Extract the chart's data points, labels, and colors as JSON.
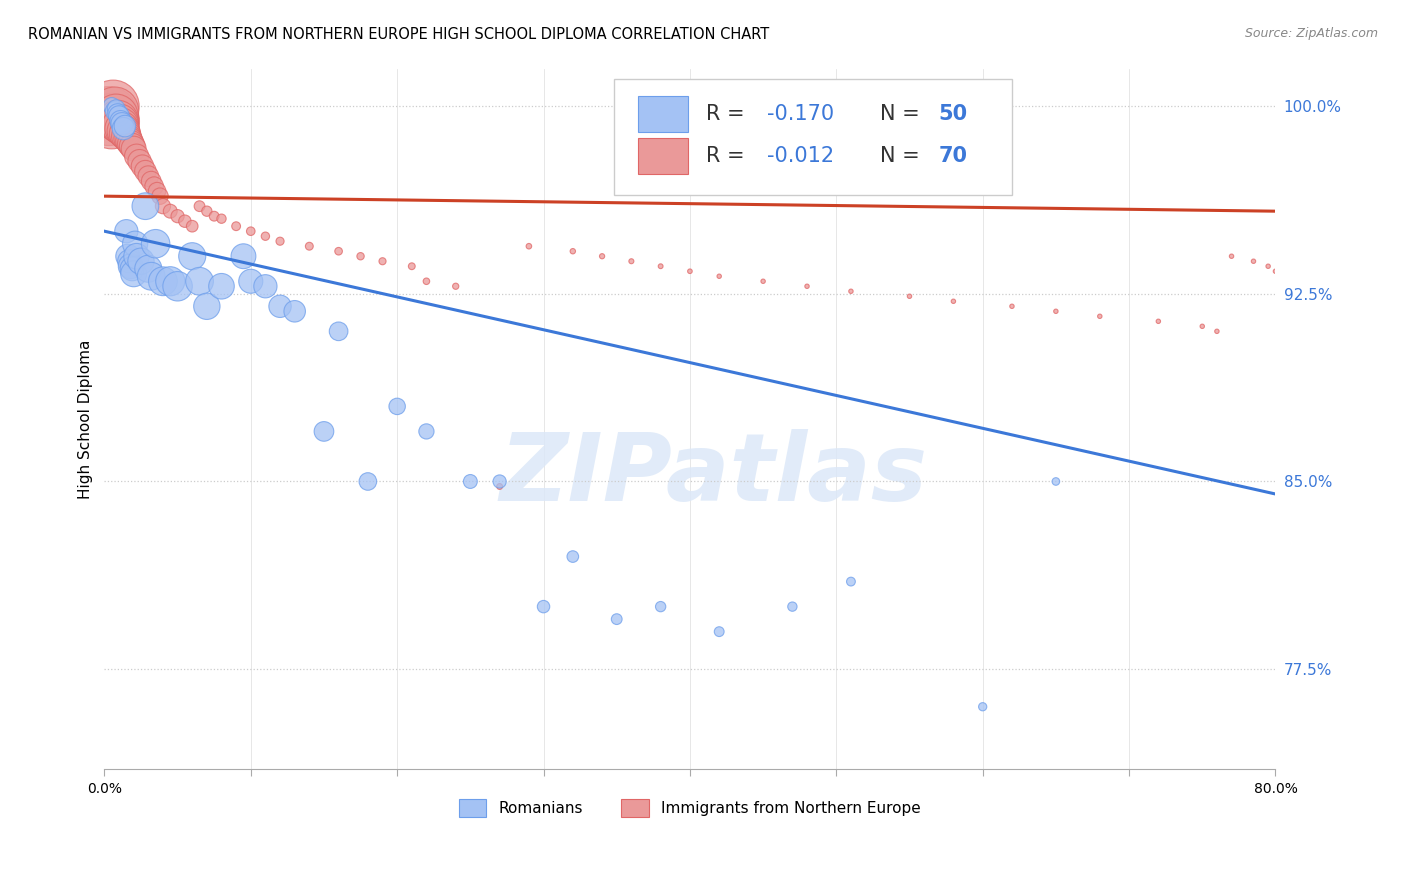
{
  "title": "ROMANIAN VS IMMIGRANTS FROM NORTHERN EUROPE HIGH SCHOOL DIPLOMA CORRELATION CHART",
  "source": "Source: ZipAtlas.com",
  "ylabel": "High School Diploma",
  "ytick_labels": [
    "100.0%",
    "92.5%",
    "85.0%",
    "77.5%"
  ],
  "ytick_values": [
    1.0,
    0.925,
    0.85,
    0.775
  ],
  "blue_R": -0.17,
  "blue_N": 50,
  "pink_R": -0.012,
  "pink_N": 70,
  "blue_label": "Romanians",
  "pink_label": "Immigrants from Northern Europe",
  "blue_color": "#a4c2f4",
  "pink_color": "#ea9999",
  "blue_edge_color": "#6d9eeb",
  "pink_edge_color": "#e06666",
  "blue_line_color": "#3c78d8",
  "pink_line_color": "#cc4125",
  "watermark_text": "ZIPatlas",
  "blue_scatter_x": [
    0.005,
    0.007,
    0.008,
    0.009,
    0.01,
    0.011,
    0.012,
    0.013,
    0.014,
    0.015,
    0.016,
    0.017,
    0.018,
    0.019,
    0.02,
    0.021,
    0.022,
    0.025,
    0.028,
    0.03,
    0.032,
    0.035,
    0.04,
    0.045,
    0.05,
    0.06,
    0.065,
    0.07,
    0.08,
    0.095,
    0.1,
    0.11,
    0.12,
    0.13,
    0.15,
    0.16,
    0.18,
    0.2,
    0.22,
    0.25,
    0.27,
    0.3,
    0.32,
    0.35,
    0.38,
    0.42,
    0.47,
    0.51,
    0.6,
    0.65
  ],
  "blue_scatter_y": [
    1.0,
    0.998,
    0.999,
    0.997,
    0.996,
    0.994,
    0.993,
    0.991,
    0.992,
    0.95,
    0.94,
    0.938,
    0.936,
    0.935,
    0.933,
    0.945,
    0.94,
    0.938,
    0.96,
    0.935,
    0.932,
    0.945,
    0.93,
    0.93,
    0.928,
    0.94,
    0.93,
    0.92,
    0.928,
    0.94,
    0.93,
    0.928,
    0.92,
    0.918,
    0.87,
    0.91,
    0.85,
    0.88,
    0.87,
    0.85,
    0.85,
    0.8,
    0.82,
    0.795,
    0.8,
    0.79,
    0.8,
    0.81,
    0.76,
    0.85
  ],
  "blue_scatter_s": [
    150,
    180,
    160,
    200,
    220,
    230,
    250,
    260,
    240,
    280,
    300,
    280,
    320,
    300,
    350,
    330,
    340,
    360,
    370,
    380,
    400,
    420,
    430,
    440,
    450,
    380,
    400,
    360,
    340,
    320,
    300,
    280,
    260,
    240,
    200,
    180,
    160,
    140,
    120,
    100,
    90,
    80,
    70,
    60,
    55,
    50,
    45,
    40,
    35,
    30
  ],
  "pink_scatter_x": [
    0.003,
    0.005,
    0.006,
    0.007,
    0.008,
    0.009,
    0.01,
    0.011,
    0.012,
    0.013,
    0.014,
    0.015,
    0.016,
    0.017,
    0.018,
    0.019,
    0.02,
    0.022,
    0.024,
    0.026,
    0.028,
    0.03,
    0.032,
    0.034,
    0.036,
    0.038,
    0.04,
    0.045,
    0.05,
    0.055,
    0.06,
    0.065,
    0.07,
    0.075,
    0.08,
    0.09,
    0.1,
    0.11,
    0.12,
    0.14,
    0.16,
    0.175,
    0.19,
    0.21,
    0.22,
    0.24,
    0.27,
    0.29,
    0.32,
    0.34,
    0.36,
    0.38,
    0.4,
    0.42,
    0.45,
    0.48,
    0.51,
    0.55,
    0.58,
    0.62,
    0.65,
    0.68,
    0.72,
    0.75,
    0.76,
    0.77,
    0.785,
    0.795,
    0.8,
    0.81
  ],
  "pink_scatter_y": [
    0.996,
    0.994,
    1.0,
    0.998,
    0.996,
    0.994,
    0.993,
    0.992,
    0.991,
    0.99,
    0.989,
    0.988,
    0.987,
    0.986,
    0.985,
    0.984,
    0.983,
    0.98,
    0.978,
    0.976,
    0.974,
    0.972,
    0.97,
    0.968,
    0.966,
    0.964,
    0.96,
    0.958,
    0.956,
    0.954,
    0.952,
    0.96,
    0.958,
    0.956,
    0.955,
    0.952,
    0.95,
    0.948,
    0.946,
    0.944,
    0.942,
    0.94,
    0.938,
    0.936,
    0.93,
    0.928,
    0.848,
    0.944,
    0.942,
    0.94,
    0.938,
    0.936,
    0.934,
    0.932,
    0.93,
    0.928,
    0.926,
    0.924,
    0.922,
    0.92,
    0.918,
    0.916,
    0.914,
    0.912,
    0.91,
    0.94,
    0.938,
    0.936,
    0.934,
    0.932
  ],
  "pink_scatter_s": [
    1800,
    1600,
    1400,
    1200,
    1000,
    900,
    800,
    700,
    600,
    550,
    500,
    450,
    400,
    380,
    360,
    340,
    320,
    300,
    280,
    260,
    240,
    220,
    200,
    180,
    160,
    140,
    120,
    100,
    90,
    80,
    70,
    60,
    55,
    50,
    45,
    40,
    38,
    36,
    34,
    32,
    30,
    28,
    26,
    24,
    22,
    20,
    18,
    16,
    15,
    14,
    13,
    12,
    11,
    10,
    10,
    10,
    10,
    10,
    10,
    10,
    10,
    10,
    10,
    10,
    10,
    10,
    10,
    10,
    10,
    10
  ],
  "xlim": [
    0.0,
    0.8
  ],
  "ylim": [
    0.735,
    1.015
  ],
  "blue_trend_x": [
    0.0,
    0.8
  ],
  "blue_trend_y": [
    0.95,
    0.845
  ],
  "pink_trend_x": [
    0.0,
    0.8
  ],
  "pink_trend_y": [
    0.964,
    0.958
  ]
}
